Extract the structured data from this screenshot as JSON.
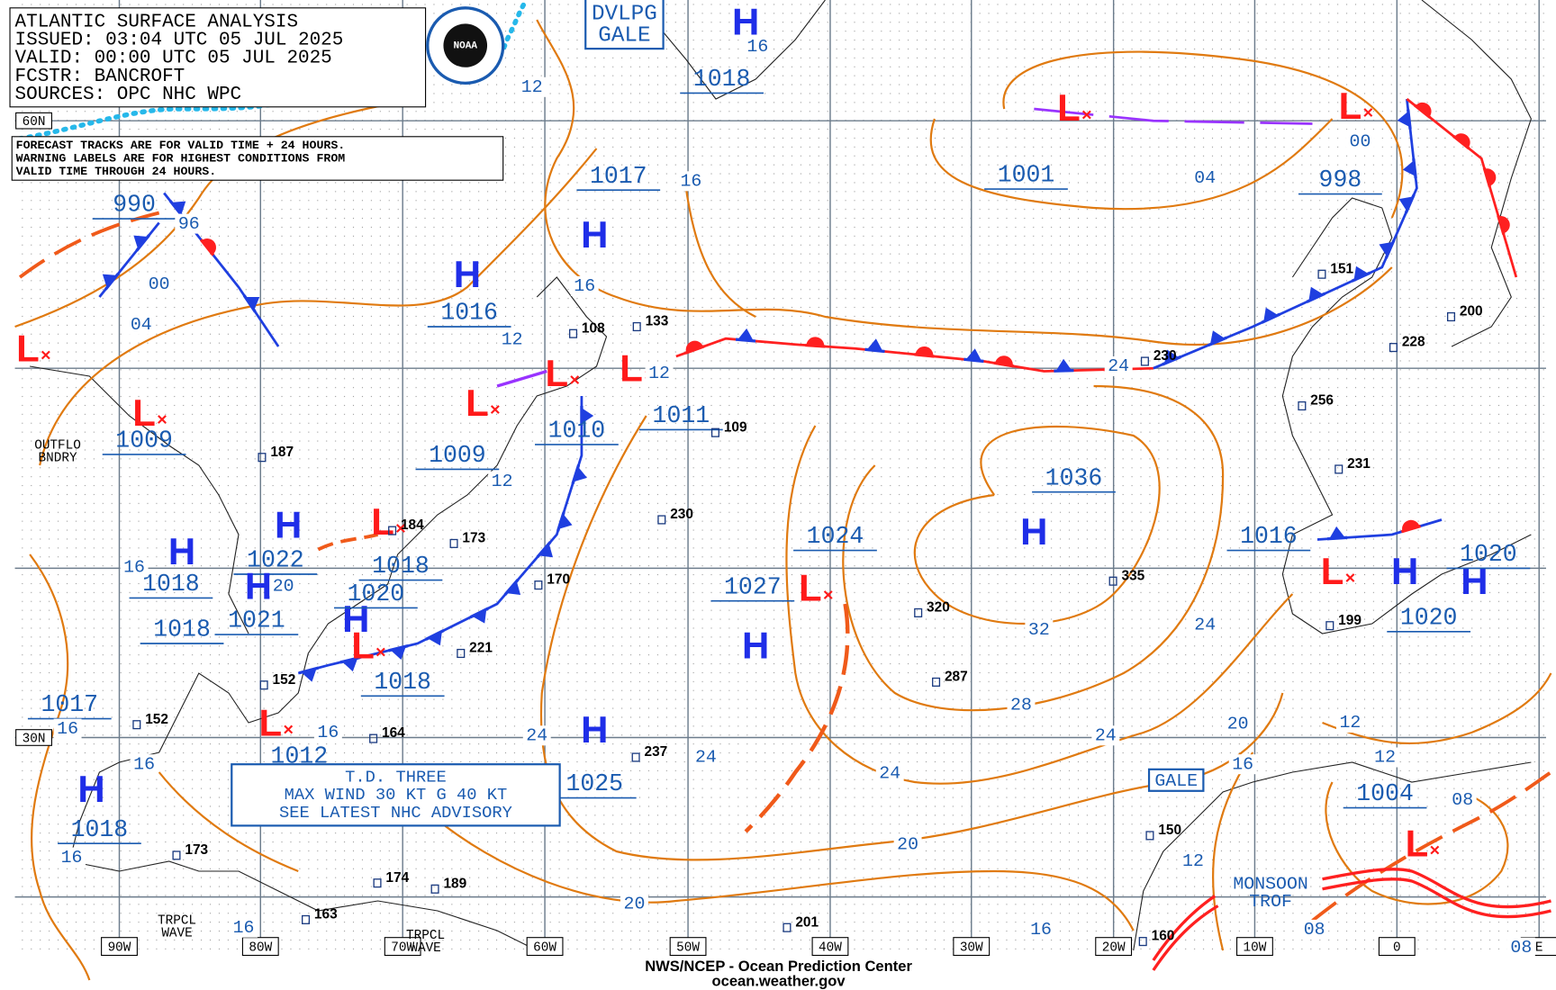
{
  "header": {
    "lines": [
      "ATLANTIC SURFACE ANALYSIS",
      "ISSUED: 03:04 UTC 05 JUL 2025",
      "VALID:  00:00 UTC 05 JUL 2025",
      "FCSTR:  BANCROFT",
      "SOURCES: OPC NHC WPC"
    ]
  },
  "note": [
    "FORECAST TRACKS ARE FOR VALID TIME + 24 HOURS.",
    "WARNING LABELS ARE FOR HIGHEST CONDITIONS FROM",
    "VALID TIME THROUGH 24 HOURS."
  ],
  "longitudes": [
    "90W",
    "80W",
    "70W",
    "60W",
    "50W",
    "40W",
    "30W",
    "20W",
    "10W",
    "0",
    "E"
  ],
  "latitudes": [
    "60N",
    "30N"
  ],
  "centers": [
    {
      "symbol": "H",
      "pressure": "1018"
    },
    {
      "symbol": "L",
      "pressure": "1001"
    },
    {
      "symbol": "L",
      "pressure": "998"
    },
    {
      "symbol": "H",
      "pressure": "1017"
    },
    {
      "symbol": "H",
      "pressure": "1016"
    },
    {
      "symbol": "L",
      "pressure": "1009"
    },
    {
      "symbol": "L",
      "pressure": "1010"
    },
    {
      "symbol": "L",
      "pressure": "1011"
    },
    {
      "symbol": "L",
      "pressure": "990"
    },
    {
      "symbol": "L",
      "pressure": "1009"
    },
    {
      "symbol": "H",
      "pressure": "1022"
    },
    {
      "symbol": "H",
      "pressure": "1018"
    },
    {
      "symbol": "H",
      "pressure": "1021"
    },
    {
      "symbol": "H",
      "pressure": "1020"
    },
    {
      "symbol": "L",
      "pressure": "1018"
    },
    {
      "symbol": "L",
      "pressure": "1018"
    },
    {
      "symbol": "L",
      "pressure": "1012"
    },
    {
      "symbol": "H",
      "pressure": "1018"
    },
    {
      "symbol": "L",
      "pressure": "1027"
    },
    {
      "symbol": "H",
      "pressure": "1024"
    },
    {
      "symbol": "H",
      "pressure": "1025"
    },
    {
      "symbol": "H",
      "pressure": "1036"
    },
    {
      "symbol": "L",
      "pressure": "1016"
    },
    {
      "symbol": "H",
      "pressure": "1020"
    },
    {
      "symbol": "H",
      "pressure": "1020"
    },
    {
      "symbol": "L",
      "pressure": "1004"
    },
    {
      "symbol": "H",
      "pressure": "1017"
    },
    {
      "symbol": "H",
      "pressure": "1018"
    }
  ],
  "isobar_labels": [
    "12",
    "16",
    "16",
    "16",
    "12",
    "12",
    "12",
    "96",
    "00",
    "04",
    "04",
    "00",
    "24",
    "32",
    "28",
    "24",
    "24",
    "24",
    "24",
    "24",
    "20",
    "20",
    "20",
    "16",
    "16",
    "16",
    "16",
    "16",
    "16",
    "16",
    "16",
    "20",
    "12",
    "12",
    "12",
    "08",
    "08",
    "08"
  ],
  "stations": [
    "230",
    "335",
    "320",
    "287",
    "237",
    "221",
    "170",
    "173",
    "184",
    "187",
    "152",
    "164",
    "201",
    "189",
    "174",
    "163",
    "160",
    "150",
    "199",
    "231",
    "256",
    "228",
    "200",
    "151",
    "133",
    "108",
    "109",
    "230",
    "173",
    "152"
  ],
  "labels": [
    "DVLPG GALE",
    "GALE",
    "MONSOON TROF",
    "TRPCL WAVE",
    "TRPCL WAVE",
    "OUTFLO BNDRY"
  ],
  "advisory": [
    "T.D. THREE",
    "MAX WIND 30 KT G 40 KT",
    "SEE LATEST NHC ADVISORY"
  ],
  "footer": [
    "NWS/NCEP - Ocean Prediction Center",
    "ocean.weather.gov"
  ]
}
